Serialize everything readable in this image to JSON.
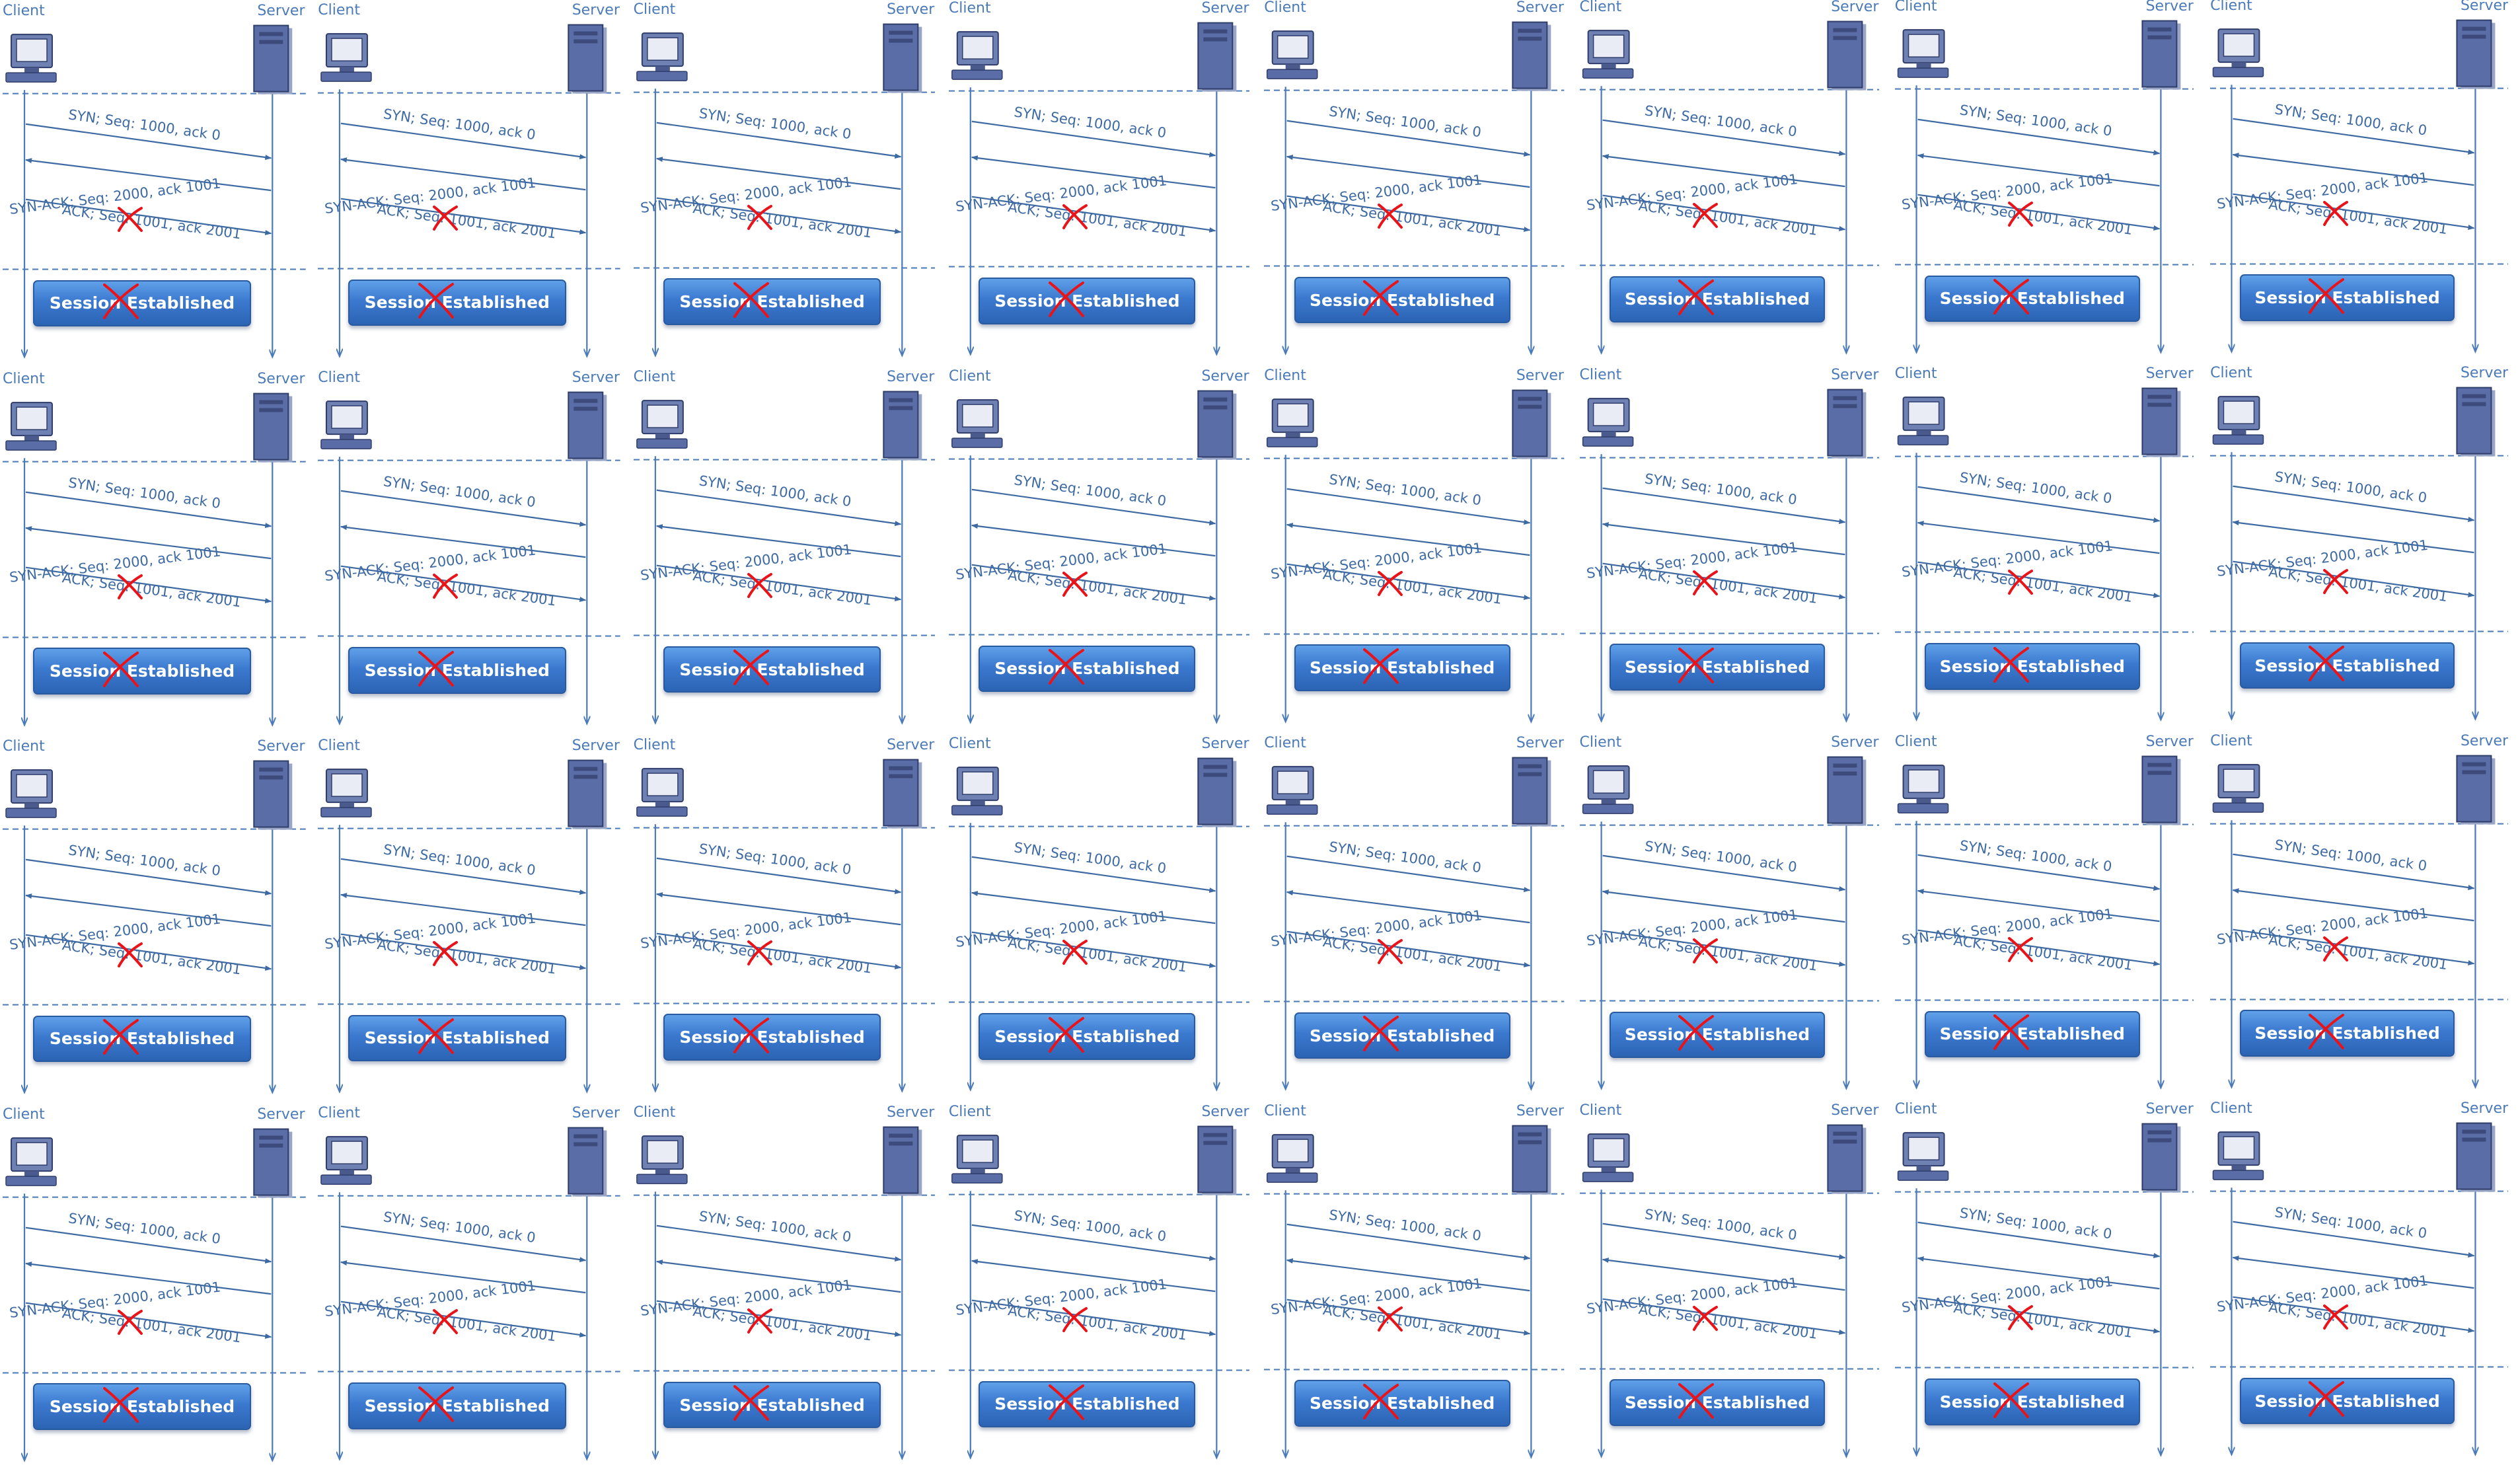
{
  "diagram": {
    "title": "",
    "grid": {
      "rows": 4,
      "columns": 8
    },
    "repeated_panel": {
      "client_label": "Client",
      "server_label": "Server",
      "client_icon": "desktop-computer-icon",
      "server_icon": "server-tower-icon",
      "messages": [
        {
          "label": "SYN; Seq: 1000, ack 0",
          "direction": "client-to-server",
          "status": "delivered"
        },
        {
          "label": "SYN-ACK; Seq: 2000, ack 1001",
          "direction": "server-to-client",
          "status": "delivered"
        },
        {
          "label": "ACK; Seq: 1001, ack 2001",
          "direction": "client-to-server",
          "status": "crossed-out"
        }
      ],
      "result_banner": "Session Established",
      "result_status": "crossed-out",
      "cross_mark_icon": "red-x-icon"
    },
    "colors": {
      "lifeline": "#4a7ab8",
      "arrow": "#3e6aa3",
      "label_text": "#4a7ab8",
      "banner_fill": "#3b79cf",
      "banner_text": "#ffffff",
      "cross_mark": "#e8141a",
      "server_body": "#5b6da6"
    }
  }
}
